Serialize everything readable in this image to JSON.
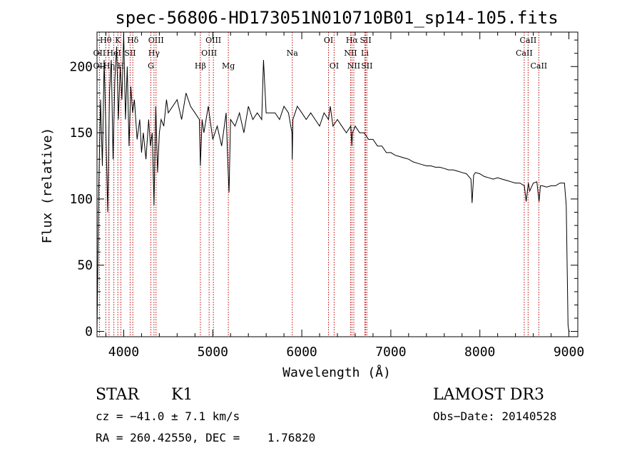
{
  "chart_data": {
    "type": "line",
    "title": "spec-56806-HD173051N010710B01_sp14-105.fits",
    "xlabel": "Wavelength (Å)",
    "ylabel": "Flux (relative)",
    "xlim": [
      3700,
      9100
    ],
    "ylim": [
      -4,
      226
    ],
    "xticks": [
      4000,
      5000,
      6000,
      7000,
      8000,
      9000
    ],
    "yticks": [
      0,
      50,
      100,
      150,
      200
    ],
    "grid": false,
    "series": [
      {
        "name": "spectrum",
        "color": "#000000",
        "x": [
          3700,
          3720,
          3740,
          3760,
          3780,
          3800,
          3820,
          3840,
          3860,
          3880,
          3900,
          3920,
          3940,
          3960,
          3980,
          4000,
          4020,
          4040,
          4060,
          4080,
          4100,
          4120,
          4150,
          4180,
          4200,
          4220,
          4250,
          4280,
          4300,
          4320,
          4340,
          4360,
          4380,
          4400,
          4420,
          4450,
          4480,
          4500,
          4550,
          4600,
          4650,
          4700,
          4750,
          4800,
          4850,
          4861,
          4880,
          4900,
          4950,
          5000,
          5050,
          5100,
          5150,
          5170,
          5183,
          5200,
          5250,
          5300,
          5350,
          5400,
          5450,
          5500,
          5550,
          5570,
          5600,
          5650,
          5700,
          5750,
          5800,
          5850,
          5890,
          5893,
          5900,
          5950,
          6000,
          6050,
          6100,
          6150,
          6200,
          6250,
          6300,
          6320,
          6350,
          6400,
          6450,
          6500,
          6550,
          6563,
          6570,
          6600,
          6650,
          6700,
          6750,
          6800,
          6850,
          6900,
          6950,
          7000,
          7050,
          7100,
          7150,
          7200,
          7250,
          7300,
          7350,
          7400,
          7450,
          7500,
          7550,
          7600,
          7650,
          7700,
          7750,
          7800,
          7850,
          7900,
          7913,
          7930,
          7950,
          8000,
          8050,
          8100,
          8150,
          8200,
          8250,
          8300,
          8350,
          8400,
          8450,
          8500,
          8520,
          8545,
          8560,
          8600,
          8640,
          8665,
          8680,
          8700,
          8750,
          8800,
          8850,
          8900,
          8950,
          8970,
          8990,
          9000,
          9010
        ],
        "y": [
          0,
          110,
          175,
          125,
          205,
          150,
          90,
          180,
          205,
          130,
          190,
          215,
          160,
          200,
          175,
          225,
          160,
          200,
          140,
          185,
          165,
          175,
          145,
          160,
          135,
          150,
          130,
          160,
          140,
          150,
          95,
          170,
          120,
          150,
          160,
          155,
          175,
          165,
          170,
          175,
          160,
          180,
          170,
          165,
          160,
          125,
          160,
          150,
          170,
          145,
          155,
          140,
          165,
          125,
          105,
          160,
          155,
          165,
          150,
          170,
          160,
          165,
          160,
          205,
          165,
          165,
          165,
          160,
          170,
          165,
          150,
          130,
          160,
          170,
          165,
          160,
          165,
          160,
          155,
          165,
          160,
          170,
          155,
          160,
          155,
          150,
          155,
          140,
          150,
          155,
          150,
          150,
          145,
          145,
          140,
          140,
          135,
          135,
          133,
          132,
          131,
          130,
          128,
          127,
          126,
          125,
          125,
          124,
          124,
          123,
          122,
          122,
          121,
          120,
          119,
          115,
          97,
          118,
          120,
          119,
          117,
          116,
          115,
          116,
          115,
          114,
          113,
          112,
          112,
          110,
          98,
          112,
          106,
          112,
          113,
          98,
          110,
          110,
          109,
          110,
          110,
          112,
          112,
          95,
          5,
          0,
          0
        ]
      }
    ],
    "lines": [
      {
        "label": "Hθ",
        "x": 3798,
        "row": 1
      },
      {
        "label": "OII",
        "x": 3727,
        "row": 2
      },
      {
        "label": "OII",
        "x": 3727,
        "row": 3
      },
      {
        "label": "Hη",
        "x": 3835,
        "row": 3
      },
      {
        "label": "K",
        "x": 3934,
        "row": 1
      },
      {
        "label": "HeI",
        "x": 3889,
        "row": 2
      },
      {
        "label": "H",
        "x": 3968,
        "row": 3
      },
      {
        "label": "Hδ",
        "x": 4102,
        "row": 1
      },
      {
        "label": "SII",
        "x": 4072,
        "row": 2
      },
      {
        "label": "OIII",
        "x": 4363,
        "row": 1
      },
      {
        "label": "Hγ",
        "x": 4340,
        "row": 2
      },
      {
        "label": "G",
        "x": 4305,
        "row": 3
      },
      {
        "label": "Hβ",
        "x": 4861,
        "row": 3
      },
      {
        "label": "OIII",
        "x": 5007,
        "row": 1
      },
      {
        "label": "OIII",
        "x": 4959,
        "row": 2
      },
      {
        "label": "Mg",
        "x": 5175,
        "row": 3
      },
      {
        "label": "Na",
        "x": 5893,
        "row": 2
      },
      {
        "label": "OI",
        "x": 6300,
        "row": 1
      },
      {
        "label": "OI",
        "x": 6363,
        "row": 3
      },
      {
        "label": "Hα",
        "x": 6563,
        "row": 1
      },
      {
        "label": "NII",
        "x": 6548,
        "row": 2
      },
      {
        "label": "NII",
        "x": 6584,
        "row": 3
      },
      {
        "label": "SII",
        "x": 6717,
        "row": 1
      },
      {
        "label": "Li",
        "x": 6708,
        "row": 2
      },
      {
        "label": "SII",
        "x": 6731,
        "row": 3
      },
      {
        "label": "CaII",
        "x": 8542,
        "row": 1
      },
      {
        "label": "CaII",
        "x": 8498,
        "row": 2
      },
      {
        "label": "CaII",
        "x": 8662,
        "row": 3
      }
    ]
  },
  "info": {
    "class": "STAR",
    "subclass": "K1",
    "survey": "LAMOST DR3",
    "cz": "cz = −41.0 ± 7.1 km/s",
    "obs_date": "Obs−Date: 20140528",
    "radec": "RA = 260.42550, DEC =    1.76820"
  },
  "colors": {
    "line_marker": "#c00000",
    "spectrum": "#000000"
  }
}
